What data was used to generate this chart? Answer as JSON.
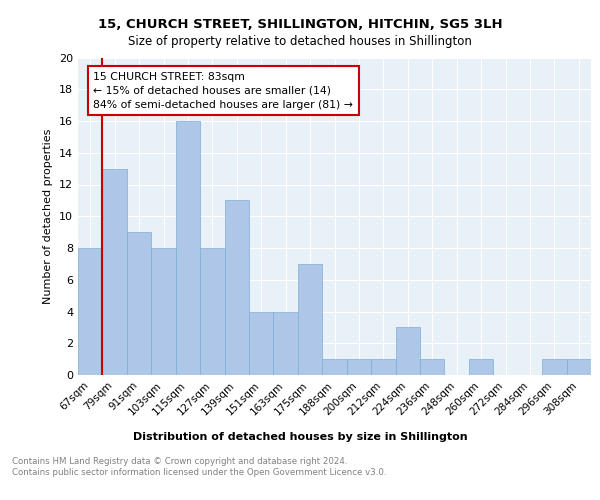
{
  "title1": "15, CHURCH STREET, SHILLINGTON, HITCHIN, SG5 3LH",
  "title2": "Size of property relative to detached houses in Shillington",
  "xlabel": "Distribution of detached houses by size in Shillington",
  "ylabel": "Number of detached properties",
  "categories": [
    "67sqm",
    "79sqm",
    "91sqm",
    "103sqm",
    "115sqm",
    "127sqm",
    "139sqm",
    "151sqm",
    "163sqm",
    "175sqm",
    "188sqm",
    "200sqm",
    "212sqm",
    "224sqm",
    "236sqm",
    "248sqm",
    "260sqm",
    "272sqm",
    "284sqm",
    "296sqm",
    "308sqm"
  ],
  "values": [
    8,
    13,
    9,
    8,
    16,
    8,
    11,
    4,
    4,
    7,
    1,
    1,
    1,
    3,
    1,
    0,
    1,
    0,
    0,
    1,
    1
  ],
  "bar_color": "#aec6e8",
  "bar_edge_color": "#7bafd4",
  "annotation_box_text": "15 CHURCH STREET: 83sqm\n← 15% of detached houses are smaller (14)\n84% of semi-detached houses are larger (81) →",
  "annotation_box_color": "#ffffff",
  "annotation_box_edge_color": "#cc0000",
  "red_line_color": "#cc0000",
  "red_line_x": 0.5,
  "ylim": [
    0,
    20
  ],
  "yticks": [
    0,
    2,
    4,
    6,
    8,
    10,
    12,
    14,
    16,
    18,
    20
  ],
  "footer": "Contains HM Land Registry data © Crown copyright and database right 2024.\nContains public sector information licensed under the Open Government Licence v3.0.",
  "background_color": "#e8f0f8",
  "grid_color": "#ffffff"
}
